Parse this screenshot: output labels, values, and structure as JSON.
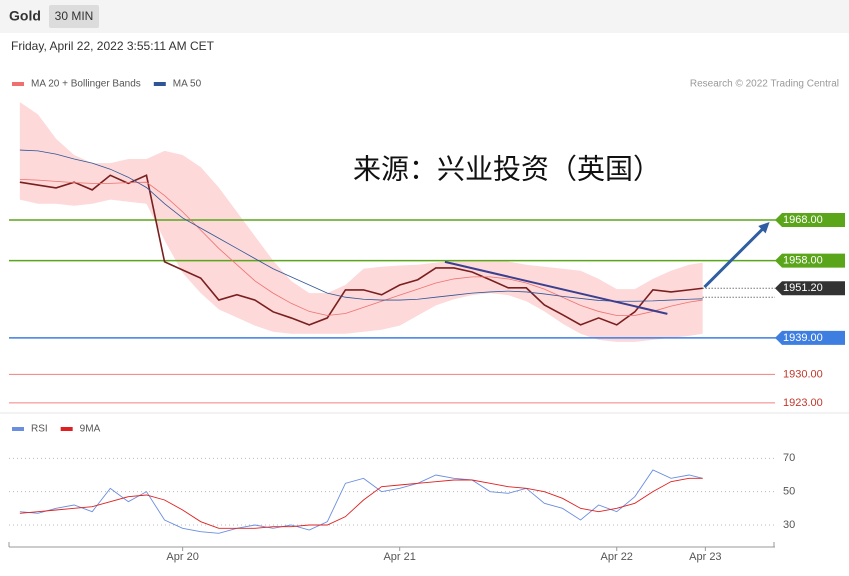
{
  "header": {
    "symbol": "Gold",
    "interval": "30 MIN",
    "date": "Friday, April 22, 2022 3:55:11 AM CET"
  },
  "chart_data": [
    {
      "type": "line",
      "credit": "Research © 2022 Trading Central",
      "watermark": "来源：兴业投资（英国）",
      "xlim": [
        -19.2,
        65.5
      ],
      "ylim": [
        1921,
        1999
      ],
      "x": [
        -18,
        -16,
        -14,
        -12,
        -10,
        -8,
        -6,
        -4,
        -2,
        0,
        2,
        4,
        6,
        8,
        10,
        12,
        14,
        16,
        18,
        20,
        22,
        24,
        26,
        28,
        30,
        32,
        34,
        36,
        38,
        40,
        42,
        44,
        46,
        48,
        50,
        52,
        54,
        56,
        57.5
      ],
      "bands": {
        "color": "#fdd9d9",
        "upper": [
          1997,
          1994,
          1988,
          1984,
          1982,
          1982,
          1983,
          1983,
          1985,
          1984,
          1981,
          1976,
          1970,
          1964,
          1958,
          1953,
          1950,
          1950,
          1952,
          1956,
          1956.5,
          1956.8,
          1957,
          1957.5,
          1958,
          1958,
          1958,
          1957.8,
          1957,
          1956.5,
          1956,
          1955.5,
          1953.5,
          1951,
          1951,
          1953.5,
          1955.5,
          1957,
          1957.5
        ],
        "lower": [
          1973,
          1972,
          1972,
          1971.5,
          1972,
          1973,
          1972.5,
          1972,
          1963,
          1955,
          1950,
          1946,
          1944,
          1942,
          1940.5,
          1940,
          1940,
          1940,
          1940,
          1940.5,
          1941,
          1942,
          1944.5,
          1947,
          1948.5,
          1949.5,
          1950,
          1949.5,
          1948,
          1945.5,
          1942.5,
          1940,
          1938.5,
          1938,
          1938,
          1938.5,
          1939,
          1939.5,
          1940
        ]
      },
      "series": [
        {
          "color": "#7a1f1f",
          "width": 1.6,
          "values": [
            1977.3,
            1976.6,
            1975.9,
            1977.3,
            1975.4,
            1979,
            1977,
            1979,
            1957.7,
            1955.7,
            1953.7,
            1948.3,
            1949.6,
            1948.3,
            1945.4,
            1943.9,
            1942.2,
            1943.9,
            1950.8,
            1950.8,
            1949.6,
            1952,
            1953.3,
            1956.2,
            1956.2,
            1955.2,
            1953.3,
            1951.3,
            1951.3,
            1947.1,
            1944.7,
            1942.2,
            1943.9,
            1942.2,
            1945.4,
            1950.8,
            1950.3,
            1950.8,
            1951.2
          ]
        },
        {
          "name": "MA 20 + Bollinger Bands",
          "color": "#f07070",
          "width": 0.8,
          "values": [
            1978,
            1977.8,
            1977.5,
            1977.2,
            1977,
            1977,
            1977.2,
            1977.3,
            1974,
            1970,
            1965.5,
            1961,
            1957,
            1953,
            1950,
            1947.5,
            1945.5,
            1944.5,
            1945,
            1946.5,
            1948,
            1949.5,
            1951,
            1952.5,
            1953.5,
            1954,
            1954,
            1953.5,
            1952.5,
            1951,
            1949,
            1947,
            1945.5,
            1944.5,
            1944.5,
            1945.5,
            1946.8,
            1947.8,
            1948.3
          ]
        },
        {
          "name": "MA 50",
          "color": "#2f5597",
          "width": 0.8,
          "values": [
            1985.2,
            1985,
            1984.2,
            1983,
            1982,
            1980.5,
            1978.5,
            1976,
            1972,
            1968.5,
            1966,
            1963.5,
            1961,
            1958.5,
            1956,
            1954,
            1952,
            1950,
            1949,
            1948.5,
            1948.3,
            1948.3,
            1948.5,
            1949,
            1949.5,
            1950,
            1950.3,
            1950.5,
            1950.3,
            1949.8,
            1949.2,
            1948.7,
            1948.2,
            1948,
            1948,
            1948.1,
            1948.3,
            1948.5,
            1948.6
          ]
        }
      ],
      "trendline": {
        "color": "#3b3f8f",
        "x": [
          29,
          53.6
        ],
        "y": [
          1957.7,
          1944.9
        ]
      },
      "arrow": {
        "color": "#2f5fa0",
        "x": [
          57.7,
          64.9
        ],
        "y": [
          1951.5,
          1967.5
        ]
      },
      "levels": [
        {
          "value": 1968,
          "label": "1968.00",
          "color": "#5aa51a",
          "style": "tag"
        },
        {
          "value": 1958,
          "label": "1958.00",
          "color": "#5aa51a",
          "style": "tag"
        },
        {
          "value": 1951.2,
          "label": "1951.20",
          "color": "#333333",
          "style": "current"
        },
        {
          "value": 1939,
          "label": "1939.00",
          "color": "#3d7ee0",
          "style": "tag"
        },
        {
          "value": 1930,
          "label": "1930.00",
          "color": "#f08080",
          "style": "text"
        },
        {
          "value": 1923,
          "label": "1923.00",
          "color": "#f08080",
          "style": "text"
        }
      ]
    },
    {
      "type": "line",
      "xlim": [
        -19.2,
        65.5
      ],
      "ylim": [
        18,
        81
      ],
      "yticks": [
        70,
        50,
        30
      ],
      "xticks": [
        {
          "value": 0,
          "label": "Apr 20"
        },
        {
          "value": 24,
          "label": "Apr 21"
        },
        {
          "value": 48,
          "label": "Apr 22"
        },
        {
          "value": 57.8,
          "label": "Apr 23"
        }
      ],
      "x": [
        -18,
        -16,
        -14,
        -12,
        -10,
        -8,
        -6,
        -4,
        -2,
        0,
        2,
        4,
        6,
        8,
        10,
        12,
        14,
        16,
        18,
        20,
        22,
        24,
        26,
        28,
        30,
        32,
        34,
        36,
        38,
        40,
        42,
        44,
        46,
        48,
        50,
        52,
        54,
        56,
        57.5
      ],
      "series": [
        {
          "name": "RSI",
          "color": "#6a8ee0",
          "width": 0.9,
          "values": [
            38,
            37,
            40,
            42,
            38,
            52,
            44,
            50,
            33,
            28,
            26,
            25,
            28,
            30,
            28,
            30,
            27,
            32,
            55,
            58,
            50,
            52,
            55,
            60,
            58,
            57,
            50,
            49,
            52,
            43,
            40,
            33,
            42,
            38,
            47,
            63,
            58,
            60,
            58
          ]
        },
        {
          "name": "9MA",
          "color": "#e02020",
          "width": 0.9,
          "values": [
            37,
            38,
            39,
            40,
            41,
            44,
            47,
            48,
            45,
            39,
            32,
            28,
            28,
            28,
            29,
            29,
            30,
            30,
            35,
            45,
            53,
            54,
            55,
            56,
            57,
            57,
            55,
            53,
            52,
            50,
            46,
            40,
            38,
            40,
            43,
            50,
            56,
            58,
            58
          ]
        }
      ]
    }
  ]
}
